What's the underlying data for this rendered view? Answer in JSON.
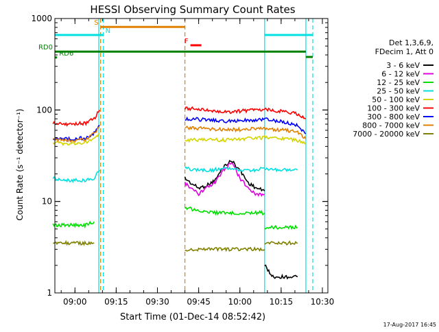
{
  "chart_data": {
    "type": "line",
    "title": "HESSI Observing Summary Count Rates",
    "xlabel": "Start Time (01-Dec-14 08:52:42)",
    "ylabel": "Count Rate (s⁻¹ detector⁻¹)",
    "yscale": "log",
    "ylim": [
      1,
      1000
    ],
    "xlim": [
      "08:52:42",
      "10:32:00"
    ],
    "x_ticks": [
      "09:00",
      "09:15",
      "09:30",
      "09:45",
      "10:00",
      "10:15",
      "10:30"
    ],
    "y_ticks": [
      "1",
      "10",
      "100",
      "1000"
    ],
    "info": [
      "Det 1,3,6,9,",
      "FDecim 1, Att 0"
    ],
    "legend_placement": "right",
    "series": [
      {
        "name": "3 - 6 keV",
        "color": "#000000",
        "segments": [
          {
            "x": [
              "09:40",
              "09:42",
              "09:45",
              "09:48",
              "09:51",
              "09:54",
              "09:57",
              "10:00",
              "10:03",
              "10:06",
              "10:09"
            ],
            "y": [
              18,
              16,
              14,
              15,
              17,
              24,
              28,
              22,
              16,
              14,
              13
            ]
          },
          {
            "x": [
              "10:09",
              "10:12",
              "10:15",
              "10:18",
              "10:21"
            ],
            "y": [
              2,
              1.5,
              1.5,
              1.5,
              1.5
            ]
          }
        ]
      },
      {
        "name": "6 - 12 keV",
        "color": "#e000e0",
        "segments": [
          {
            "x": [
              "09:40",
              "09:42",
              "09:45",
              "09:48",
              "09:51",
              "09:54",
              "09:57",
              "10:00",
              "10:03",
              "10:06",
              "10:09"
            ],
            "y": [
              16,
              14,
              12,
              14,
              16,
              22,
              27,
              18,
              14,
              12,
              12
            ]
          }
        ]
      },
      {
        "name": "12 - 25 keV",
        "color": "#00e000",
        "segments": [
          {
            "x": [
              "08:52",
              "08:56",
              "09:00",
              "09:04",
              "09:07"
            ],
            "y": [
              5.5,
              5.5,
              5.5,
              5.5,
              6
            ]
          },
          {
            "x": [
              "09:40",
              "09:45",
              "09:50",
              "09:55",
              "10:00",
              "10:05",
              "10:09"
            ],
            "y": [
              8.5,
              8,
              7.5,
              7.5,
              7.5,
              7.5,
              7.5
            ]
          },
          {
            "x": [
              "10:09",
              "10:13",
              "10:17",
              "10:21"
            ],
            "y": [
              5.2,
              5.2,
              5.2,
              5.2
            ]
          }
        ]
      },
      {
        "name": "25 - 50 keV",
        "color": "#00e0e0",
        "segments": [
          {
            "x": [
              "08:52",
              "08:56",
              "09:00",
              "09:04",
              "09:07",
              "09:09"
            ],
            "y": [
              18,
              17,
              17,
              17,
              18,
              22
            ]
          },
          {
            "x": [
              "09:40",
              "09:45",
              "09:50",
              "09:55",
              "10:00",
              "10:05",
              "10:09"
            ],
            "y": [
              23,
              22,
              22,
              23,
              22,
              22,
              23
            ]
          },
          {
            "x": [
              "10:09",
              "10:13",
              "10:17",
              "10:21"
            ],
            "y": [
              23,
              22,
              22,
              22
            ]
          }
        ]
      },
      {
        "name": "50 - 100 keV",
        "color": "#d4d400",
        "segments": [
          {
            "x": [
              "08:52",
              "08:56",
              "09:00",
              "09:04",
              "09:07",
              "09:09"
            ],
            "y": [
              44,
              43,
              43,
              44,
              48,
              55
            ]
          },
          {
            "x": [
              "09:40",
              "09:45",
              "09:50",
              "09:55",
              "10:00",
              "10:05",
              "10:09",
              "10:13",
              "10:17",
              "10:21",
              "10:24"
            ],
            "y": [
              47,
              47,
              47,
              47,
              48,
              49,
              50,
              49,
              48,
              46,
              44
            ]
          }
        ]
      },
      {
        "name": "100 - 300 keV",
        "color": "#ff0000",
        "segments": [
          {
            "x": [
              "08:52",
              "08:56",
              "09:00",
              "09:04",
              "09:07",
              "09:09"
            ],
            "y": [
              72,
              70,
              70,
              72,
              80,
              100
            ]
          },
          {
            "x": [
              "09:40",
              "09:45",
              "09:50",
              "09:55",
              "10:00",
              "10:05",
              "10:09",
              "10:13",
              "10:17",
              "10:21",
              "10:24"
            ],
            "y": [
              105,
              102,
              98,
              95,
              97,
              100,
              102,
              98,
              95,
              90,
              80
            ]
          }
        ]
      },
      {
        "name": "300 - 800 keV",
        "color": "#0000ff",
        "segments": [
          {
            "x": [
              "08:52",
              "08:56",
              "09:00",
              "09:04",
              "09:07",
              "09:09"
            ],
            "y": [
              49,
              48,
              48,
              50,
              56,
              68
            ]
          },
          {
            "x": [
              "09:40",
              "09:45",
              "09:50",
              "09:55",
              "10:00",
              "10:05",
              "10:09",
              "10:13",
              "10:17",
              "10:21",
              "10:24"
            ],
            "y": [
              80,
              79,
              77,
              75,
              76,
              78,
              79,
              76,
              73,
              68,
              55
            ]
          }
        ]
      },
      {
        "name": "800 - 7000 keV",
        "color": "#e08000",
        "segments": [
          {
            "x": [
              "08:52",
              "08:56",
              "09:00",
              "09:04",
              "09:07",
              "09:09"
            ],
            "y": [
              48,
              46,
              46,
              48,
              55,
              65
            ]
          },
          {
            "x": [
              "09:40",
              "09:45",
              "09:50",
              "09:55",
              "10:00",
              "10:05",
              "10:09",
              "10:13",
              "10:17",
              "10:21",
              "10:24"
            ],
            "y": [
              64,
              63,
              62,
              61,
              61,
              62,
              62,
              61,
              60,
              58,
              48
            ]
          }
        ]
      },
      {
        "name": "7000 - 20000 keV",
        "color": "#808000",
        "segments": [
          {
            "x": [
              "08:52",
              "08:56",
              "09:00",
              "09:04",
              "09:07"
            ],
            "y": [
              3.5,
              3.5,
              3.5,
              3.5,
              3.5
            ]
          },
          {
            "x": [
              "09:40",
              "09:45",
              "09:50",
              "09:55",
              "10:00",
              "10:05",
              "10:09"
            ],
            "y": [
              3,
              3,
              3,
              3,
              3,
              3,
              3
            ]
          },
          {
            "x": [
              "10:09",
              "10:13",
              "10:17",
              "10:21"
            ],
            "y": [
              3.5,
              3.5,
              3.5,
              3.5
            ]
          }
        ]
      }
    ],
    "flag_bars": [
      {
        "label": "S",
        "color": "#e08000",
        "x_start": "09:09:20",
        "x_end": "09:40:00",
        "level": 810,
        "label_side": "left"
      },
      {
        "label": "N",
        "color": "#00e0e0",
        "x_start": "08:52:42",
        "x_end": "09:10:20",
        "level": 660,
        "label_side": "right"
      },
      {
        "label": "N",
        "color": "#00e0e0",
        "x_start": "10:09:00",
        "x_end": "10:26:30",
        "level": 660
      },
      {
        "label": "F",
        "color": "#ff0000",
        "x_start": "09:42:00",
        "x_end": "09:46:00",
        "level": 510,
        "label_side": "left"
      },
      {
        "label": "RD0",
        "color": "#008000",
        "x_start": "08:52:42",
        "x_end": "10:24:00",
        "level": 435,
        "label_side": "outside-left"
      },
      {
        "label": "RD0",
        "color": "#008000",
        "x_start": "10:24:00",
        "x_end": "10:26:30",
        "level": 380
      },
      {
        "label": "RD6",
        "color": "#008000",
        "x_start": "08:52:42",
        "x_end": "08:53:30",
        "level": 375,
        "label_side": "right"
      }
    ],
    "vertical_lines": [
      {
        "x": "09:08:40",
        "color": "#00e0e0",
        "style": "solid"
      },
      {
        "x": "09:09:20",
        "color": "#e08000",
        "style": "dashed"
      },
      {
        "x": "09:10:20",
        "color": "#00e0e0",
        "style": "dashed"
      },
      {
        "x": "09:40:00",
        "color": "#e08000",
        "style": "dashed"
      },
      {
        "x": "10:09:00",
        "color": "#00e0e0",
        "style": "solid"
      },
      {
        "x": "10:24:00",
        "color": "#00e0e0",
        "style": "solid"
      },
      {
        "x": "10:26:30",
        "color": "#00e0e0",
        "style": "dashed"
      }
    ],
    "footer": "17-Aug-2017 16:45",
    "grid": false
  }
}
